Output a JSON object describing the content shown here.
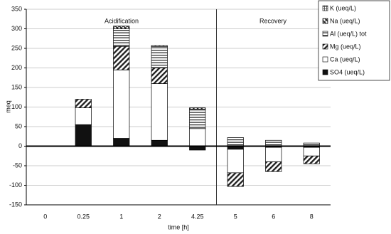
{
  "chart_data": {
    "type": "bar",
    "stacked": true,
    "x_label": "time [h]",
    "y_label": "meq",
    "annotations": [
      "Acidification",
      "Recovery"
    ],
    "categories": [
      "0",
      "0.25",
      "1",
      "2",
      "4.25",
      "5",
      "6",
      "8"
    ],
    "series": [
      {
        "name": "SO4 (ueq/L)",
        "color": "#111111",
        "pattern": "solid",
        "values": [
          0,
          55,
          20,
          15,
          -10,
          -8,
          -3,
          -3
        ]
      },
      {
        "name": "Ca (ueq/L)",
        "color": "#ffffff",
        "pattern": "solid",
        "values": [
          0,
          43,
          175,
          145,
          45,
          -60,
          -37,
          -22
        ]
      },
      {
        "name": "Mg (ueq/L)",
        "color": "#222222",
        "pattern": "diagonal",
        "values": [
          0,
          22,
          60,
          40,
          0,
          -35,
          -25,
          -20
        ]
      },
      {
        "name": "Al (ueq/L) tot",
        "color": "#222222",
        "pattern": "horizontal",
        "values": [
          0,
          0,
          45,
          55,
          50,
          22,
          15,
          8
        ]
      },
      {
        "name": "Na (ueq/L)",
        "color": "#222222",
        "pattern": "crosshatch",
        "values": [
          0,
          0,
          7,
          2,
          3,
          0,
          0,
          0
        ]
      },
      {
        "name": "K (ueq/L)",
        "color": "#222222",
        "pattern": "grid",
        "values": [
          0,
          0,
          0,
          0,
          0,
          0,
          0,
          0
        ]
      }
    ],
    "ylim": [
      -150,
      350
    ],
    "yticks": [
      -150,
      -100,
      -50,
      0,
      50,
      100,
      150,
      200,
      250,
      300,
      350
    ],
    "grid": true,
    "legend": "top-right"
  }
}
